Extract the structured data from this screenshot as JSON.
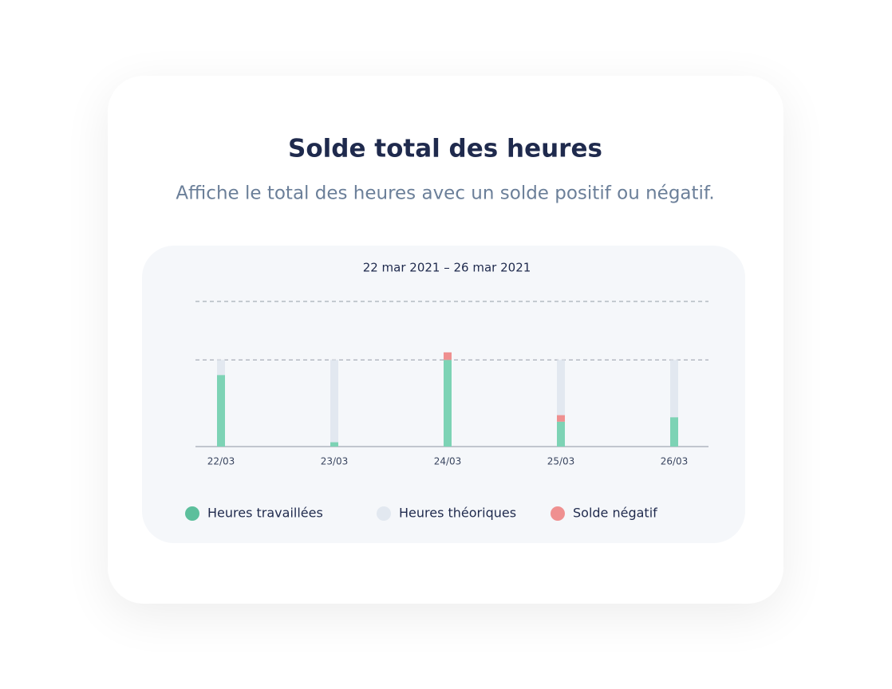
{
  "header": {
    "title": "Solde total des heures",
    "subtitle": "Affiche le total des heures avec un solde positif ou négatif."
  },
  "chart_data": {
    "type": "bar",
    "title": "22 mar 2021 – 26 mar 2021",
    "categories": [
      "22/03",
      "23/03",
      "24/03",
      "25/03",
      "26/03"
    ],
    "series": [
      {
        "name": "Heures travaillées",
        "color": "#7dd3b5",
        "values": [
          6.6,
          0.4,
          8,
          2.3,
          2.7
        ]
      },
      {
        "name": "Heures théoriques",
        "color": "#e2e8f0",
        "values": [
          8,
          8,
          8,
          8,
          8
        ]
      },
      {
        "name": "Solde négatif",
        "color": "#ef9090",
        "values": [
          null,
          null,
          0.7,
          0.6,
          null
        ]
      }
    ],
    "legend_colors": [
      "#5cbf9c",
      "#e2e8f0",
      "#ef9090"
    ],
    "ylim": [
      0,
      13.4
    ],
    "yticks": [
      8,
      13.4
    ],
    "grid": true
  }
}
